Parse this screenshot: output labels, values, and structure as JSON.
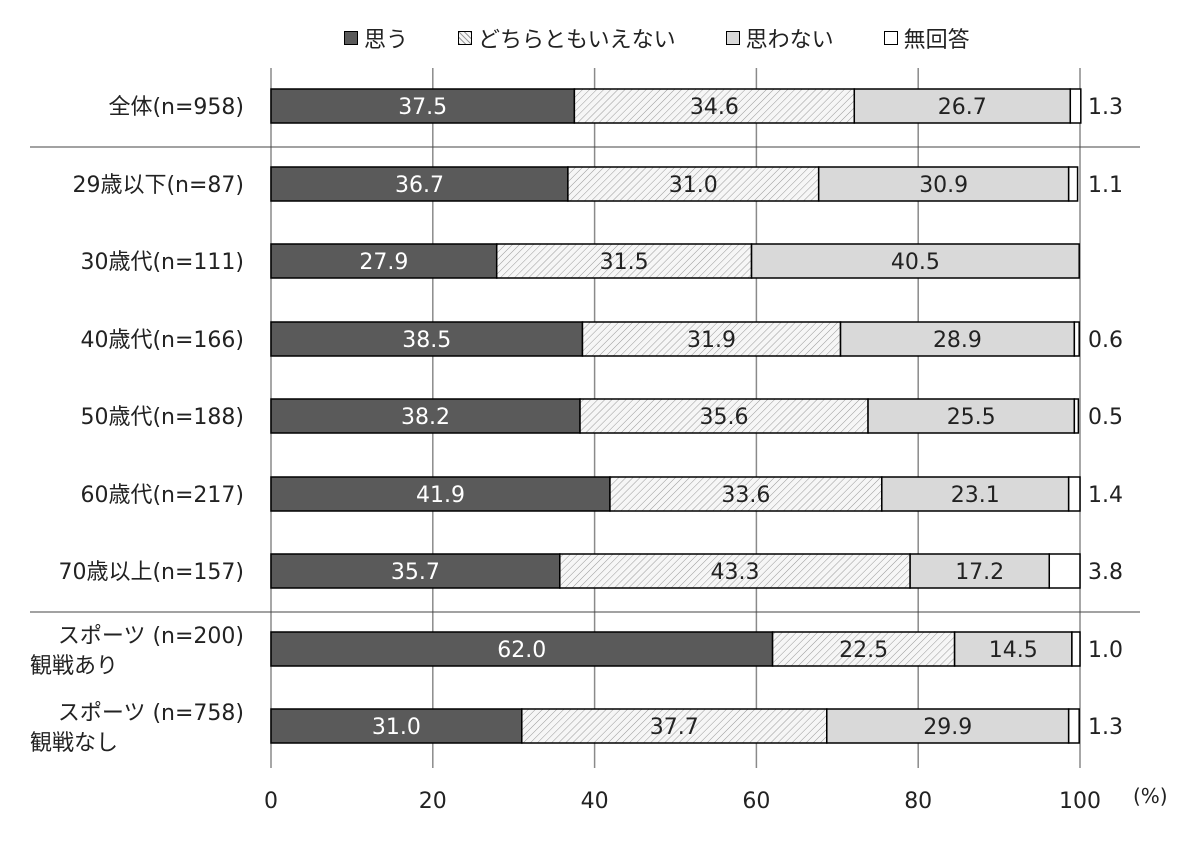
{
  "chart_data": {
    "type": "bar",
    "orientation": "horizontal",
    "stacked": true,
    "unit": "(%)",
    "xlim": [
      0,
      100
    ],
    "x_ticks": [
      0,
      20,
      40,
      60,
      80,
      100
    ],
    "grid": true,
    "legend_position": "top",
    "series": [
      {
        "name": "思う",
        "color": "#5a5a5a",
        "pattern": "solid",
        "values": [
          37.5,
          36.7,
          27.9,
          38.5,
          38.2,
          41.9,
          35.7,
          62.0,
          31.0
        ]
      },
      {
        "name": "どちらともいえない",
        "color": "#f4f4f4",
        "pattern": "hatch",
        "values": [
          34.6,
          31.0,
          31.5,
          31.9,
          35.6,
          33.6,
          43.3,
          22.5,
          37.7
        ]
      },
      {
        "name": "思わない",
        "color": "#d9d9d9",
        "pattern": "solid",
        "values": [
          26.7,
          30.9,
          40.5,
          28.9,
          25.5,
          23.1,
          17.2,
          14.5,
          29.9
        ]
      },
      {
        "name": "無回答",
        "color": "#ffffff",
        "pattern": "solid",
        "values": [
          1.3,
          1.1,
          0.0,
          0.6,
          0.5,
          1.4,
          3.8,
          1.0,
          1.3
        ]
      }
    ],
    "categories": [
      {
        "line1": "全体(n=958)",
        "line2": ""
      },
      {
        "line1": "29歳以下(n=87)",
        "line2": ""
      },
      {
        "line1": "30歳代(n=111)",
        "line2": ""
      },
      {
        "line1": "40歳代(n=166)",
        "line2": ""
      },
      {
        "line1": "50歳代(n=188)",
        "line2": ""
      },
      {
        "line1": "60歳代(n=217)",
        "line2": ""
      },
      {
        "line1": "70歳以上(n=157)",
        "line2": ""
      },
      {
        "line1": "スポーツ (n=200)",
        "line2": "観戦あり"
      },
      {
        "line1": "スポーツ (n=758)",
        "line2": "観戦なし"
      }
    ],
    "outside_labels": [
      "1.3",
      "1.1",
      "",
      "0.6",
      "0.5",
      "1.4",
      "3.8",
      "1.0",
      "1.3"
    ],
    "separators_after_index": [
      0,
      6
    ]
  }
}
